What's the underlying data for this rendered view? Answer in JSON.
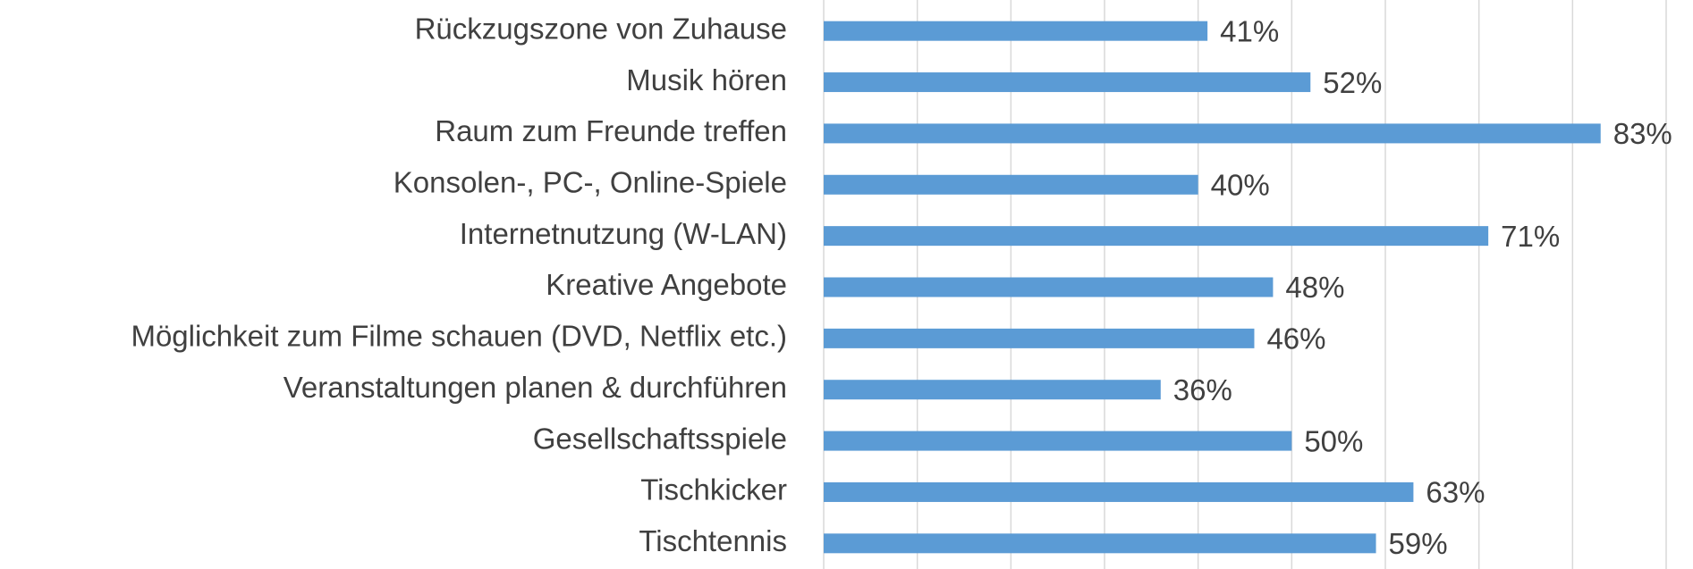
{
  "chart_data": {
    "type": "bar",
    "orientation": "horizontal",
    "categories": [
      "Rückzugszone von Zuhause",
      "Musik hören",
      "Raum zum Freunde treffen",
      "Konsolen-, PC-, Online-Spiele",
      "Internetnutzung (W-LAN)",
      "Kreative Angebote",
      "Möglichkeit zum Filme schauen (DVD, Netflix etc.)",
      "Veranstaltungen planen & durchführen",
      "Gesellschaftsspiele",
      "Tischkicker",
      "Tischtennis"
    ],
    "values": [
      41,
      52,
      83,
      40,
      71,
      48,
      46,
      36,
      50,
      63,
      59
    ],
    "value_labels": [
      "41%",
      "52%",
      "83%",
      "40%",
      "71%",
      "48%",
      "46%",
      "36%",
      "50%",
      "63%",
      "59%"
    ],
    "color": "#5b9bd5",
    "xlim": [
      0,
      90
    ],
    "xticks": [
      0,
      10,
      20,
      30,
      40,
      50,
      60,
      70,
      80,
      90
    ],
    "grid": true
  }
}
